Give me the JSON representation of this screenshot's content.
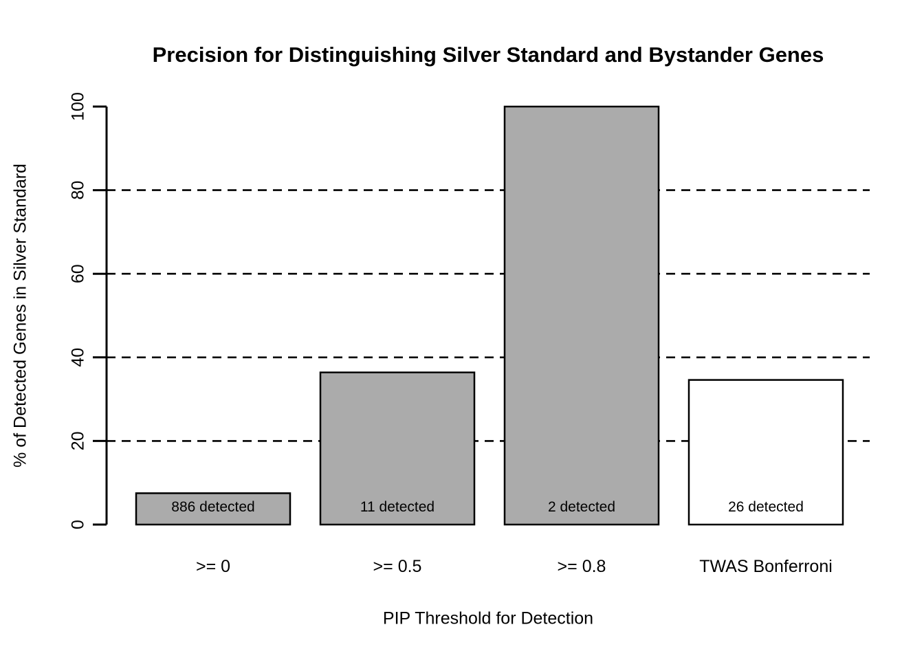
{
  "chart_data": {
    "type": "bar",
    "title": "Precision for Distinguishing Silver Standard and Bystander Genes",
    "xlabel": "PIP Threshold for Detection",
    "ylabel": "% of Detected Genes in Silver Standard",
    "categories": [
      ">= 0",
      ">= 0.5",
      ">= 0.8",
      "TWAS Bonferroni"
    ],
    "values": [
      7.5,
      36.4,
      100,
      34.6
    ],
    "bar_labels": [
      "886 detected",
      "11 detected",
      "2 detected",
      "26 detected"
    ],
    "bar_fill_colors": [
      "#ababab",
      "#ababab",
      "#ababab",
      "#ffffff"
    ],
    "bar_border_color": "#000000",
    "ylim": [
      0,
      100
    ],
    "yticks": [
      0,
      20,
      40,
      60,
      80,
      100
    ],
    "gridlines": [
      20,
      40,
      60,
      80
    ],
    "grid_style": "dashed",
    "legend_position": "none",
    "background_color": "#ffffff",
    "text_color": "#000000"
  }
}
